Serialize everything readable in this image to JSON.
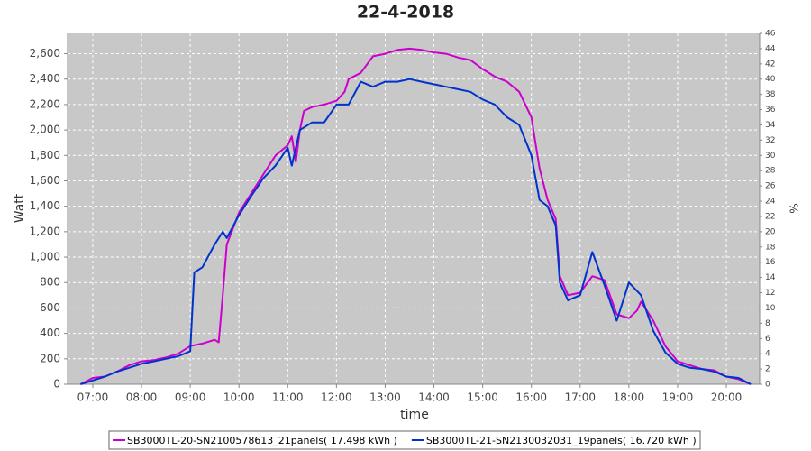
{
  "chart_data": {
    "type": "line",
    "title": "22-4-2018",
    "x_label": "time",
    "y_label": "Watt",
    "y2_label": "%",
    "xlim": [
      "06:29",
      "20:41"
    ],
    "xticks": [
      "07:00",
      "08:00",
      "09:00",
      "10:00",
      "11:00",
      "12:00",
      "13:00",
      "14:00",
      "15:00",
      "16:00",
      "17:00",
      "18:00",
      "19:00",
      "20:00"
    ],
    "ylim": [
      0,
      2760
    ],
    "yticks": [
      0,
      200,
      400,
      600,
      800,
      {
        "value": 1000,
        "label": "1,000"
      },
      {
        "value": 1200,
        "label": "1,200"
      },
      {
        "value": 1400,
        "label": "1,400"
      },
      {
        "value": 1600,
        "label": "1,600"
      },
      {
        "value": 1800,
        "label": "1,800"
      },
      {
        "value": 2000,
        "label": "2,000"
      },
      {
        "value": 2200,
        "label": "2,200"
      },
      {
        "value": 2400,
        "label": "2,400"
      },
      {
        "value": 2600,
        "label": "2,600"
      }
    ],
    "y2lim": [
      0,
      46
    ],
    "y2ticks": [
      0,
      2,
      4,
      6,
      8,
      10,
      12,
      14,
      16,
      18,
      20,
      22,
      24,
      26,
      28,
      30,
      32,
      34,
      36,
      38,
      40,
      42,
      44,
      46
    ],
    "grid": true,
    "series": [
      {
        "name": "SB3000TL-20-SN2100578613_21panels( 17.498 kWh )",
        "color": "#cc00cc",
        "x": [
          "06:45",
          "07:00",
          "07:15",
          "07:30",
          "07:45",
          "08:00",
          "08:15",
          "08:30",
          "08:45",
          "09:00",
          "09:15",
          "09:30",
          "09:35",
          "09:40",
          "09:45",
          "10:00",
          "10:15",
          "10:30",
          "10:45",
          "11:00",
          "11:05",
          "11:10",
          "11:15",
          "11:20",
          "11:30",
          "11:45",
          "12:00",
          "12:10",
          "12:15",
          "12:30",
          "12:45",
          "13:00",
          "13:15",
          "13:30",
          "13:45",
          "14:00",
          "14:15",
          "14:30",
          "14:45",
          "15:00",
          "15:15",
          "15:30",
          "15:45",
          "16:00",
          "16:10",
          "16:20",
          "16:30",
          "16:35",
          "16:45",
          "17:00",
          "17:15",
          "17:30",
          "17:45",
          "18:00",
          "18:10",
          "18:15",
          "18:30",
          "18:45",
          "19:00",
          "19:15",
          "19:30",
          "19:45",
          "20:00",
          "20:15",
          "20:30"
        ],
        "values": [
          0,
          50,
          60,
          100,
          150,
          180,
          190,
          210,
          240,
          300,
          320,
          350,
          330,
          700,
          1100,
          1350,
          1500,
          1650,
          1800,
          1880,
          1950,
          1750,
          2000,
          2150,
          2180,
          2200,
          2230,
          2300,
          2400,
          2450,
          2580,
          2600,
          2630,
          2640,
          2630,
          2610,
          2600,
          2570,
          2550,
          2480,
          2420,
          2380,
          2300,
          2100,
          1700,
          1450,
          1300,
          850,
          700,
          720,
          850,
          820,
          550,
          520,
          580,
          650,
          500,
          300,
          180,
          150,
          120,
          110,
          60,
          40,
          0
        ]
      },
      {
        "name": "SB3000TL-21-SN2130032031_19panels( 16.720 kWh )",
        "color": "#0033cc",
        "x": [
          "06:45",
          "07:00",
          "07:15",
          "07:30",
          "07:45",
          "08:00",
          "08:15",
          "08:30",
          "08:45",
          "09:00",
          "09:05",
          "09:15",
          "09:30",
          "09:40",
          "09:45",
          "10:00",
          "10:15",
          "10:30",
          "10:45",
          "11:00",
          "11:05",
          "11:15",
          "11:30",
          "11:45",
          "12:00",
          "12:15",
          "12:30",
          "12:45",
          "13:00",
          "13:15",
          "13:30",
          "13:45",
          "14:00",
          "14:15",
          "14:30",
          "14:45",
          "15:00",
          "15:15",
          "15:30",
          "15:45",
          "16:00",
          "16:10",
          "16:20",
          "16:30",
          "16:35",
          "16:45",
          "17:00",
          "17:15",
          "17:30",
          "17:45",
          "18:00",
          "18:15",
          "18:30",
          "18:45",
          "19:00",
          "19:15",
          "19:30",
          "19:45",
          "20:00",
          "20:15",
          "20:30"
        ],
        "values": [
          0,
          30,
          60,
          100,
          130,
          160,
          180,
          200,
          220,
          260,
          880,
          920,
          1100,
          1200,
          1150,
          1330,
          1480,
          1620,
          1720,
          1860,
          1720,
          2000,
          2060,
          2060,
          2200,
          2200,
          2380,
          2340,
          2380,
          2380,
          2400,
          2380,
          2360,
          2340,
          2320,
          2300,
          2240,
          2200,
          2100,
          2040,
          1800,
          1450,
          1400,
          1250,
          800,
          660,
          700,
          1040,
          780,
          500,
          800,
          700,
          420,
          250,
          160,
          130,
          120,
          100,
          60,
          50,
          0
        ]
      }
    ]
  }
}
